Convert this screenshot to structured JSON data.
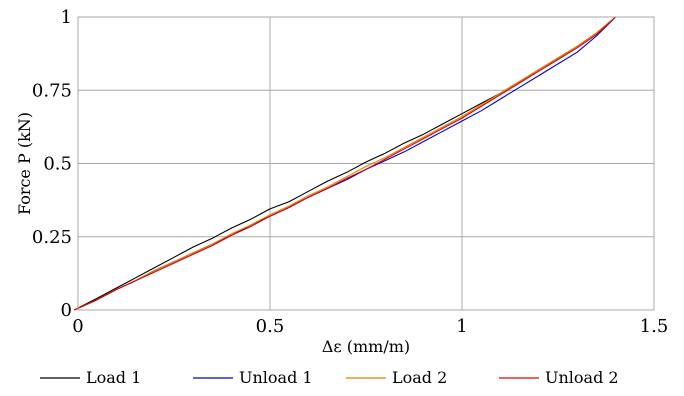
{
  "chart_data": {
    "type": "line",
    "title": "",
    "xlabel": "Δε (mm/m)",
    "ylabel": "Force P (kN)",
    "xlim": [
      0,
      1.5
    ],
    "ylim": [
      0,
      1
    ],
    "x_ticks": [
      "0",
      "0.5",
      "1",
      "1.5"
    ],
    "y_ticks": [
      "0",
      "0.25",
      "0.5",
      "0.75",
      "1"
    ],
    "grid": true,
    "legend_position": "bottom",
    "series": [
      {
        "name": "Load 1",
        "color": "#000000",
        "x": [
          -0.01,
          0.05,
          0.1,
          0.15,
          0.2,
          0.25,
          0.3,
          0.35,
          0.4,
          0.45,
          0.5,
          0.55,
          0.6,
          0.65,
          0.7,
          0.75,
          0.8,
          0.85,
          0.9,
          0.95,
          1.0,
          1.05,
          1.1,
          1.15,
          1.2,
          1.25,
          1.3,
          1.35,
          1.4
        ],
        "values": [
          0.0,
          0.04,
          0.075,
          0.11,
          0.145,
          0.18,
          0.215,
          0.245,
          0.28,
          0.31,
          0.345,
          0.37,
          0.405,
          0.44,
          0.47,
          0.505,
          0.535,
          0.57,
          0.6,
          0.635,
          0.67,
          0.705,
          0.74,
          0.78,
          0.82,
          0.86,
          0.9,
          0.945,
          1.0
        ]
      },
      {
        "name": "Unload 1",
        "color": "#0000cc",
        "x": [
          -0.01,
          0.05,
          0.1,
          0.15,
          0.2,
          0.25,
          0.3,
          0.35,
          0.4,
          0.45,
          0.5,
          0.55,
          0.6,
          0.65,
          0.7,
          0.75,
          0.8,
          0.85,
          0.9,
          0.95,
          1.0,
          1.05,
          1.1,
          1.15,
          1.2,
          1.25,
          1.3,
          1.35,
          1.4
        ],
        "values": [
          0.0,
          0.035,
          0.07,
          0.1,
          0.135,
          0.165,
          0.195,
          0.225,
          0.255,
          0.29,
          0.32,
          0.35,
          0.385,
          0.415,
          0.445,
          0.48,
          0.51,
          0.54,
          0.575,
          0.61,
          0.645,
          0.68,
          0.72,
          0.76,
          0.8,
          0.84,
          0.88,
          0.935,
          1.0
        ]
      },
      {
        "name": "Load 2",
        "color": "#e08000",
        "x": [
          -0.01,
          0.05,
          0.1,
          0.15,
          0.2,
          0.25,
          0.3,
          0.35,
          0.4,
          0.45,
          0.5,
          0.55,
          0.6,
          0.65,
          0.7,
          0.75,
          0.8,
          0.85,
          0.9,
          0.95,
          1.0,
          1.05,
          1.1,
          1.15,
          1.2,
          1.25,
          1.3,
          1.35,
          1.4
        ],
        "values": [
          0.0,
          0.035,
          0.07,
          0.1,
          0.135,
          0.165,
          0.195,
          0.225,
          0.26,
          0.29,
          0.325,
          0.355,
          0.39,
          0.42,
          0.455,
          0.49,
          0.52,
          0.555,
          0.59,
          0.625,
          0.66,
          0.7,
          0.74,
          0.78,
          0.82,
          0.86,
          0.9,
          0.945,
          1.0
        ]
      },
      {
        "name": "Unload 2",
        "color": "#e00000",
        "x": [
          -0.01,
          0.05,
          0.1,
          0.15,
          0.2,
          0.25,
          0.3,
          0.35,
          0.4,
          0.45,
          0.5,
          0.55,
          0.6,
          0.65,
          0.7,
          0.75,
          0.8,
          0.85,
          0.9,
          0.95,
          1.0,
          1.05,
          1.1,
          1.15,
          1.2,
          1.25,
          1.3,
          1.35,
          1.4
        ],
        "values": [
          0.0,
          0.035,
          0.07,
          0.1,
          0.13,
          0.16,
          0.19,
          0.22,
          0.255,
          0.285,
          0.32,
          0.35,
          0.385,
          0.415,
          0.45,
          0.48,
          0.515,
          0.55,
          0.585,
          0.62,
          0.655,
          0.695,
          0.735,
          0.775,
          0.815,
          0.855,
          0.895,
          0.94,
          1.0
        ]
      }
    ]
  }
}
